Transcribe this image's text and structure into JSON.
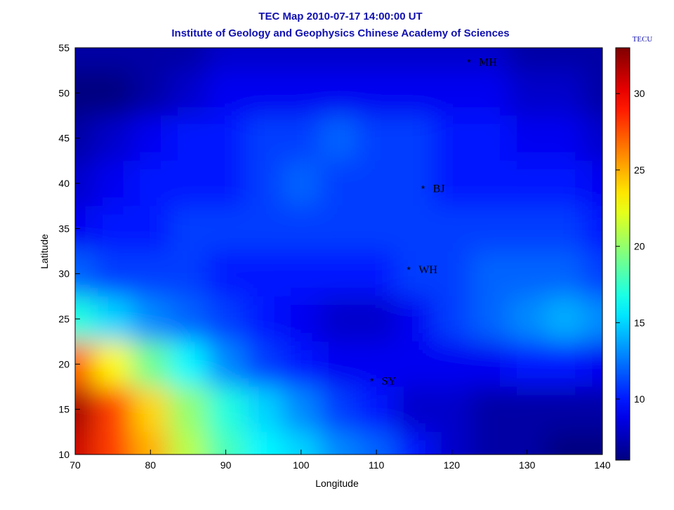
{
  "chart_data": {
    "type": "heatmap",
    "title": "TEC Map 2010-07-17 14:00:00 UT",
    "subtitle": "Institute of Geology and Geophysics Chinese Academy of Sciences",
    "x_label": "Longitude",
    "y_label": "Latitude",
    "x": [
      70,
      75,
      80,
      85,
      90,
      95,
      100,
      105,
      110,
      115,
      120,
      125,
      130,
      135,
      140
    ],
    "y": [
      55,
      50,
      45,
      40,
      35,
      30,
      25,
      20,
      15,
      10
    ],
    "z": [
      [
        7,
        7,
        7,
        7,
        8,
        8,
        8,
        8,
        8,
        8,
        8,
        8,
        7,
        7,
        7
      ],
      [
        6,
        6,
        7,
        8,
        9,
        9,
        9,
        9,
        9,
        9,
        9,
        9,
        8,
        8,
        7
      ],
      [
        7,
        8,
        9,
        10,
        10,
        11,
        11,
        12,
        11,
        11,
        10,
        10,
        9,
        9,
        8
      ],
      [
        8,
        9,
        10,
        10,
        10,
        11,
        12,
        11,
        11,
        11,
        10,
        10,
        10,
        10,
        9
      ],
      [
        9,
        10,
        10,
        11,
        11,
        11,
        11,
        11,
        11,
        11,
        11,
        11,
        11,
        11,
        10
      ],
      [
        12,
        11,
        11,
        11,
        10,
        10,
        10,
        10,
        10,
        11,
        11,
        12,
        12,
        12,
        11
      ],
      [
        17,
        15,
        13,
        12,
        11,
        10,
        9,
        8,
        8,
        9,
        11,
        12,
        13,
        14,
        13
      ],
      [
        27,
        23,
        19,
        16,
        13,
        11,
        10,
        9,
        9,
        9,
        9,
        9,
        10,
        10,
        9
      ],
      [
        32,
        28,
        24,
        20,
        17,
        15,
        13,
        11,
        10,
        8,
        8,
        7,
        7,
        7,
        7
      ],
      [
        31,
        28,
        25,
        21,
        18,
        16,
        15,
        13,
        12,
        10,
        8,
        7,
        7,
        6,
        6
      ]
    ],
    "xlim": [
      70,
      140
    ],
    "ylim": [
      10,
      55
    ],
    "xticks": [
      70,
      80,
      90,
      100,
      110,
      120,
      130,
      140
    ],
    "yticks": [
      10,
      15,
      20,
      25,
      30,
      35,
      40,
      45,
      50,
      55
    ],
    "colormap": "jet",
    "clim": [
      6,
      33
    ],
    "cticks": [
      10,
      15,
      20,
      25,
      30
    ],
    "colorbar_label": "TECU",
    "stations": [
      {
        "name": "MH",
        "lon": 122.3,
        "lat": 53.5
      },
      {
        "name": "BJ",
        "lon": 116.2,
        "lat": 39.5
      },
      {
        "name": "WH",
        "lon": 114.3,
        "lat": 30.5
      },
      {
        "name": "SY",
        "lon": 109.4,
        "lat": 18.2
      }
    ]
  }
}
